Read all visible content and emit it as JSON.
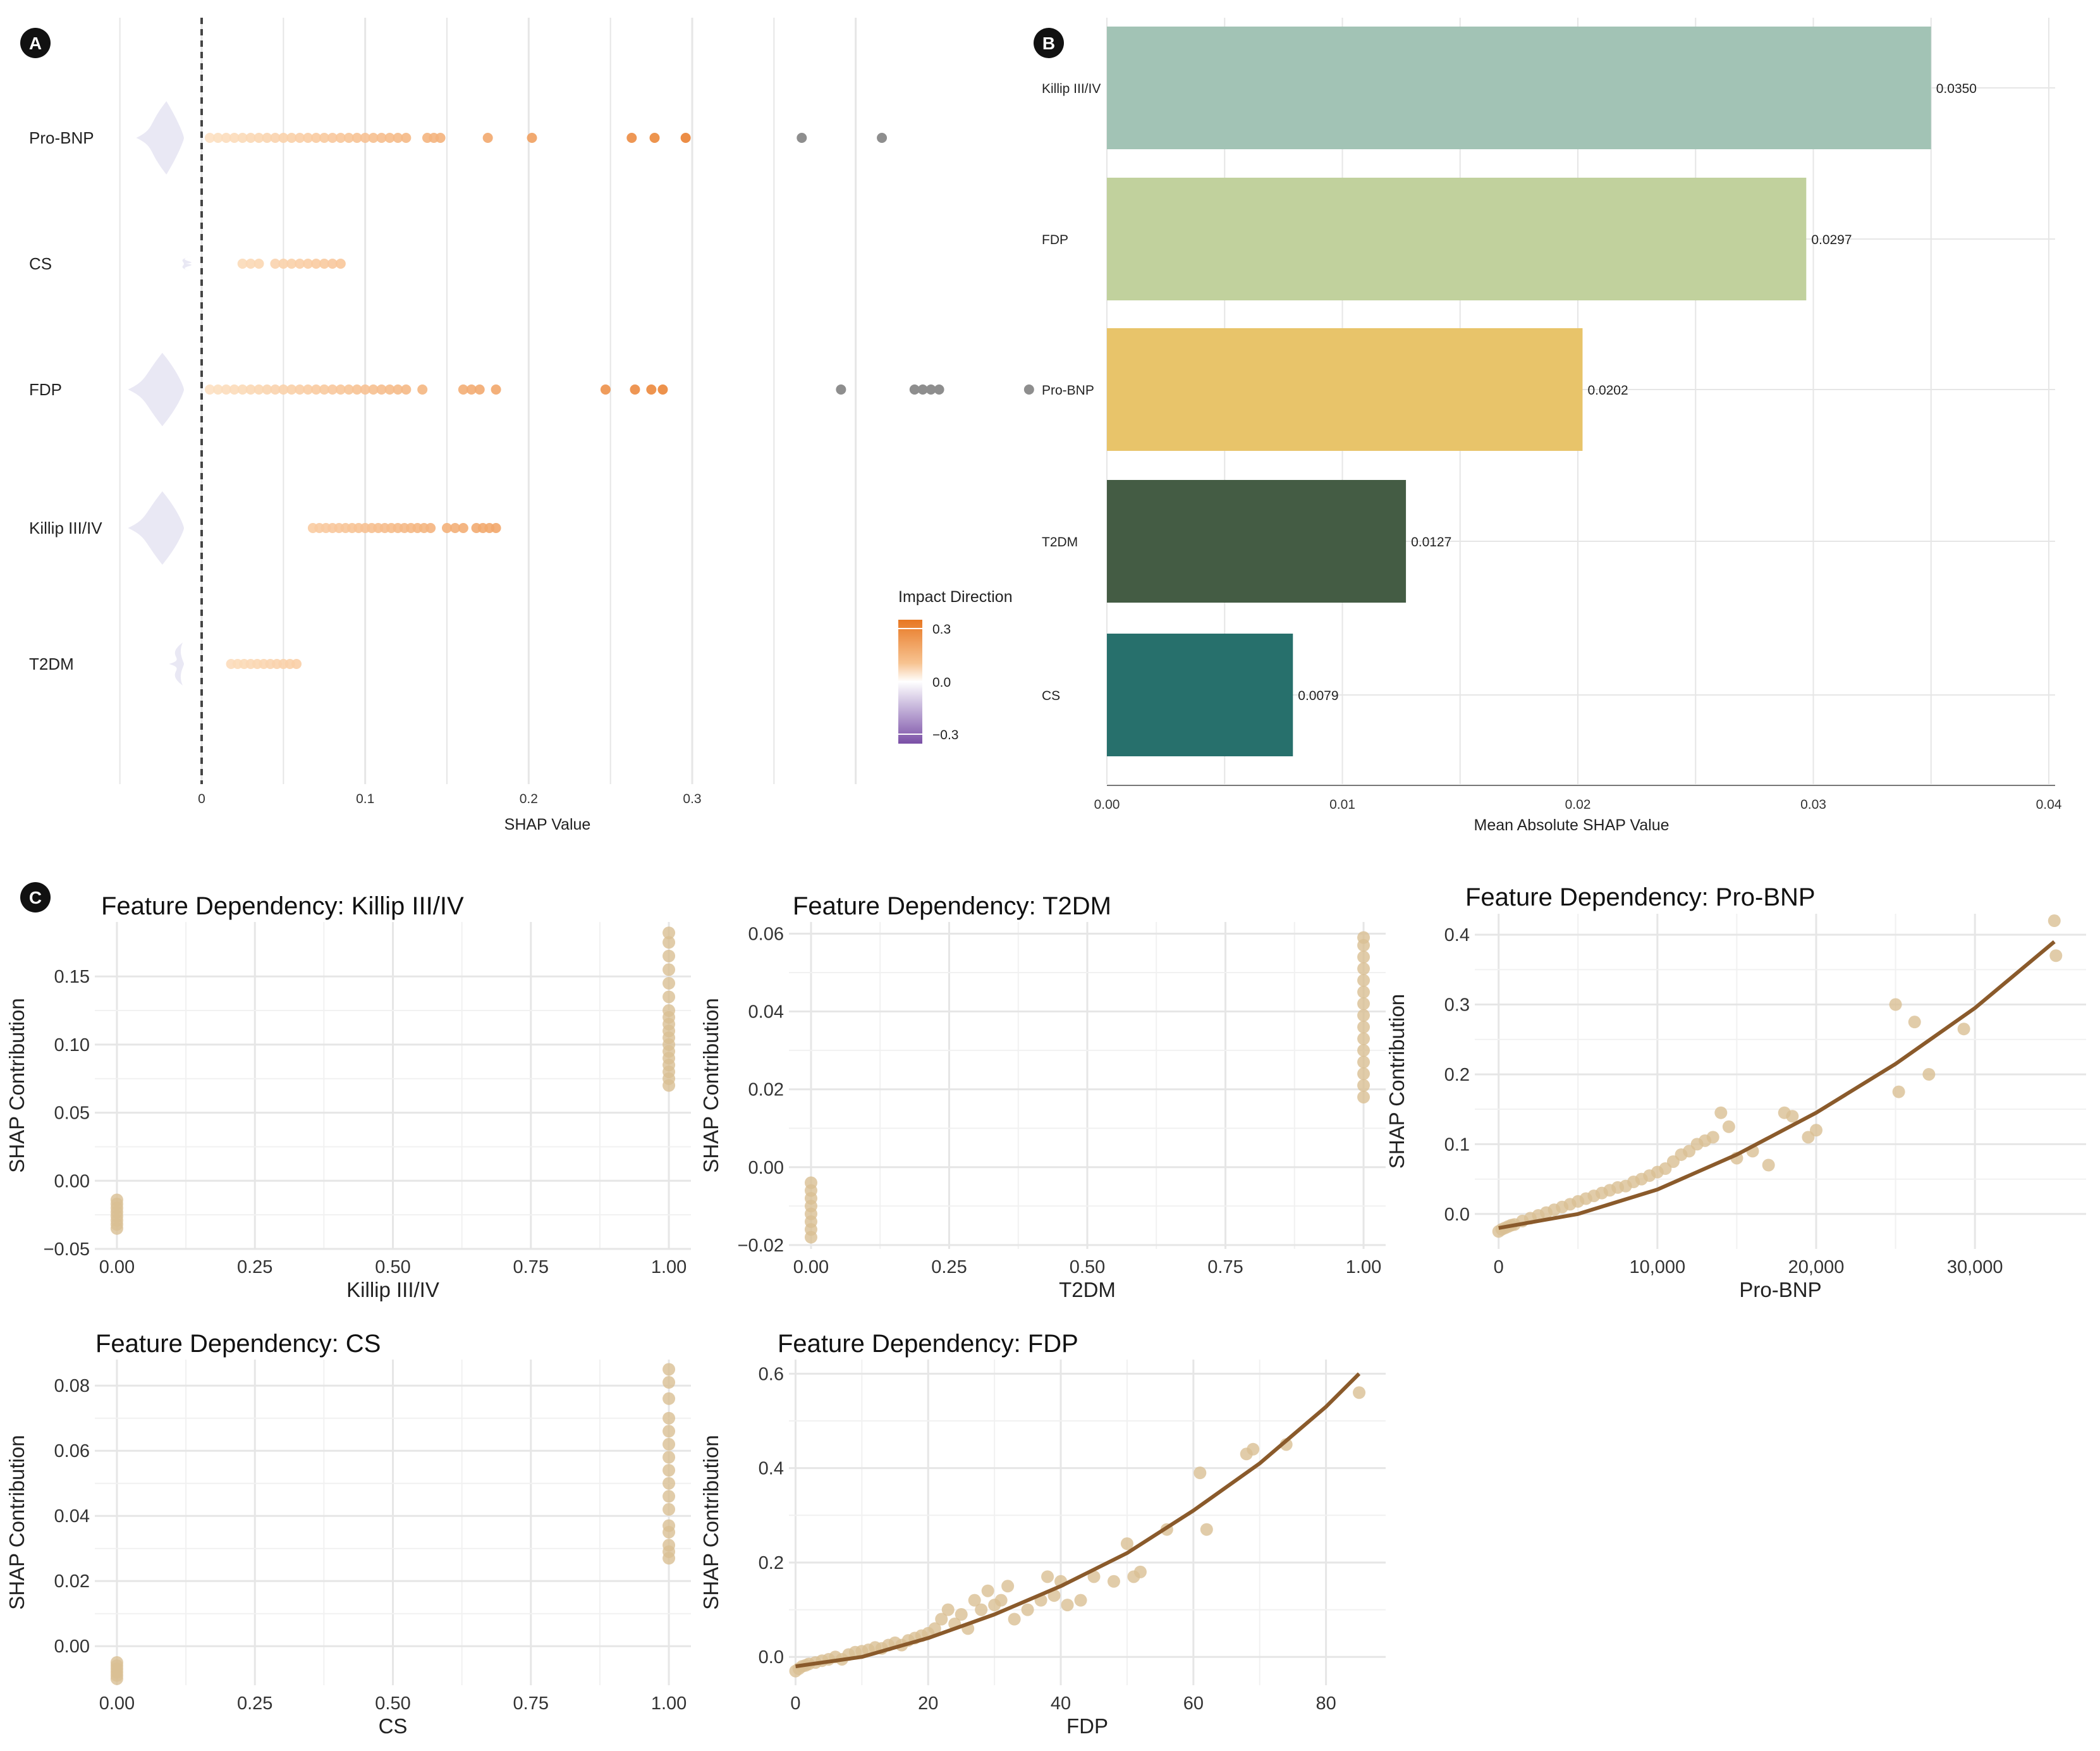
{
  "panel_labels": [
    "A",
    "B",
    "C"
  ],
  "colors": {
    "grid": "#e6e6e6",
    "axis": "#777777",
    "text": "#222222",
    "point_dependency": "#d9bf93",
    "fit_line": "#8a5a2b",
    "bar_killip": "#a2c3b5",
    "bar_fdp": "#c1d19d",
    "bar_probnp": "#e8c46a",
    "bar_t2dm": "#445c44",
    "bar_cs": "#27706c",
    "outlier_gray": "#8e8e8e",
    "violin": "#e7e6f3"
  },
  "chart_data": [
    {
      "panel": "A",
      "type": "scatter",
      "title": "",
      "xlabel": "SHAP Value",
      "ylabel": "",
      "xlim": [
        -0.05,
        0.4
      ],
      "xticks": [
        0.0,
        0.1,
        0.2,
        0.3
      ],
      "categories": [
        "Pro-BNP",
        "CS",
        "FDP",
        "Killip III/IV",
        "T2DM"
      ],
      "zero_line": "dashed",
      "legend": {
        "title": "Impact Direction",
        "ticks": [
          "0.3",
          "0.0",
          "−0.3"
        ],
        "placement": "right"
      },
      "series": [
        {
          "category": "Pro-BNP",
          "values": [
            0.005,
            0.01,
            0.015,
            0.02,
            0.025,
            0.03,
            0.035,
            0.04,
            0.045,
            0.05,
            0.055,
            0.06,
            0.065,
            0.07,
            0.075,
            0.08,
            0.085,
            0.09,
            0.095,
            0.1,
            0.105,
            0.11,
            0.115,
            0.12,
            0.125,
            0.138,
            0.142,
            0.146,
            0.175,
            0.202,
            0.263,
            0.277,
            0.296
          ],
          "outliers": [
            0.367,
            0.416
          ],
          "violin_left": -0.04
        },
        {
          "category": "CS",
          "values": [
            0.025,
            0.03,
            0.035,
            0.045,
            0.05,
            0.055,
            0.06,
            0.065,
            0.07,
            0.075,
            0.08,
            0.085
          ],
          "outliers": [],
          "violin_left": -0.01
        },
        {
          "category": "FDP",
          "values": [
            0.005,
            0.01,
            0.015,
            0.02,
            0.025,
            0.03,
            0.035,
            0.04,
            0.045,
            0.05,
            0.055,
            0.06,
            0.065,
            0.07,
            0.075,
            0.08,
            0.085,
            0.09,
            0.095,
            0.1,
            0.105,
            0.11,
            0.115,
            0.12,
            0.125,
            0.135,
            0.16,
            0.165,
            0.17,
            0.18,
            0.247,
            0.265,
            0.275,
            0.282
          ],
          "outliers": [
            0.391,
            0.436,
            0.441,
            0.446,
            0.451,
            0.506
          ],
          "violin_left": -0.045
        },
        {
          "category": "Killip III/IV",
          "values": [
            0.068,
            0.072,
            0.076,
            0.08,
            0.084,
            0.088,
            0.092,
            0.096,
            0.1,
            0.104,
            0.108,
            0.112,
            0.116,
            0.12,
            0.124,
            0.128,
            0.132,
            0.136,
            0.14,
            0.15,
            0.155,
            0.16,
            0.168,
            0.172,
            0.176,
            0.18
          ],
          "outliers": [],
          "violin_left": -0.045
        },
        {
          "category": "T2DM",
          "values": [
            0.018,
            0.022,
            0.026,
            0.03,
            0.034,
            0.038,
            0.042,
            0.046,
            0.05,
            0.054,
            0.058
          ],
          "outliers": [],
          "violin_left": -0.02
        }
      ]
    },
    {
      "panel": "B",
      "type": "bar",
      "orientation": "horizontal",
      "title": "",
      "xlabel": "Mean Absolute SHAP Value",
      "ylabel": "",
      "xlim": [
        0,
        0.04
      ],
      "xticks": [
        "0.00",
        "0.01",
        "0.02",
        "0.03",
        "0.04"
      ],
      "categories": [
        "Killip III/IV",
        "FDP",
        "Pro-BNP",
        "T2DM",
        "CS"
      ],
      "values": [
        0.035,
        0.0297,
        0.0202,
        0.0127,
        0.0079
      ],
      "value_labels": [
        "0.0350",
        "0.0297",
        "0.0202",
        "0.0127",
        "0.0079"
      ]
    },
    {
      "panel": "C1",
      "type": "scatter",
      "title": "Feature Dependency: Killip III/IV",
      "xlabel": "Killip III/IV",
      "ylabel": "SHAP Contribution",
      "xlim": [
        -0.04,
        1.04
      ],
      "ylim": [
        -0.05,
        0.19
      ],
      "xticks": [
        "0.00",
        "0.25",
        "0.50",
        "0.75",
        "1.00"
      ],
      "yticks": [
        "−0.05",
        "0.00",
        "0.05",
        "0.10",
        "0.15"
      ],
      "x": [
        0,
        0,
        0,
        0,
        0,
        0,
        0,
        0,
        1,
        1,
        1,
        1,
        1,
        1,
        1,
        1,
        1,
        1,
        1,
        1,
        1,
        1,
        1,
        1,
        1,
        1
      ],
      "y": [
        -0.035,
        -0.032,
        -0.029,
        -0.026,
        -0.023,
        -0.02,
        -0.017,
        -0.014,
        0.07,
        0.075,
        0.08,
        0.085,
        0.09,
        0.095,
        0.1,
        0.105,
        0.11,
        0.115,
        0.12,
        0.125,
        0.135,
        0.145,
        0.155,
        0.165,
        0.175,
        0.182
      ]
    },
    {
      "panel": "C2",
      "type": "scatter",
      "title": "Feature Dependency: T2DM",
      "xlabel": "T2DM",
      "ylabel": "SHAP Contribution",
      "xlim": [
        -0.04,
        1.04
      ],
      "ylim": [
        -0.021,
        0.063
      ],
      "xticks": [
        "0.00",
        "0.25",
        "0.50",
        "0.75",
        "1.00"
      ],
      "yticks": [
        "−0.02",
        "0.00",
        "0.02",
        "0.04",
        "0.06"
      ],
      "x": [
        0,
        0,
        0,
        0,
        0,
        0,
        0,
        0,
        1,
        1,
        1,
        1,
        1,
        1,
        1,
        1,
        1,
        1,
        1,
        1,
        1,
        1,
        1
      ],
      "y": [
        -0.018,
        -0.016,
        -0.014,
        -0.012,
        -0.01,
        -0.008,
        -0.006,
        -0.004,
        0.018,
        0.021,
        0.024,
        0.027,
        0.03,
        0.033,
        0.036,
        0.039,
        0.042,
        0.045,
        0.048,
        0.051,
        0.054,
        0.057,
        0.059
      ]
    },
    {
      "panel": "C3",
      "type": "scatter",
      "title": "Feature Dependency: Pro-BNP",
      "xlabel": "Pro-BNP",
      "ylabel": "SHAP Contribution",
      "xlim": [
        -1500,
        37000
      ],
      "ylim": [
        -0.05,
        0.43
      ],
      "xticks": [
        "0",
        "10,000",
        "20,000",
        "30,000"
      ],
      "yticks": [
        "0.0",
        "0.1",
        "0.2",
        "0.3",
        "0.4"
      ],
      "x": [
        0,
        200,
        400,
        600,
        800,
        1000,
        1500,
        2000,
        2500,
        3000,
        3500,
        4000,
        4500,
        5000,
        5500,
        6000,
        6500,
        7000,
        7500,
        8000,
        8500,
        9000,
        9500,
        10000,
        10500,
        11000,
        11500,
        12000,
        12500,
        13000,
        13500,
        14000,
        14500,
        15000,
        16000,
        17000,
        18000,
        18500,
        19500,
        20000,
        25000,
        25200,
        26200,
        27100,
        29300,
        35000,
        35100
      ],
      "y": [
        -0.025,
        -0.022,
        -0.02,
        -0.018,
        -0.016,
        -0.015,
        -0.01,
        -0.006,
        -0.002,
        0.002,
        0.006,
        0.01,
        0.014,
        0.018,
        0.022,
        0.026,
        0.03,
        0.034,
        0.038,
        0.04,
        0.046,
        0.05,
        0.055,
        0.06,
        0.065,
        0.075,
        0.085,
        0.09,
        0.1,
        0.105,
        0.11,
        0.145,
        0.125,
        0.08,
        0.09,
        0.07,
        0.145,
        0.14,
        0.11,
        0.12,
        0.3,
        0.175,
        0.275,
        0.2,
        0.265,
        0.42,
        0.37
      ],
      "fit_line": {
        "x": [
          0,
          5000,
          10000,
          15000,
          20000,
          25000,
          30000,
          35000
        ],
        "y": [
          -0.02,
          0.0,
          0.035,
          0.085,
          0.145,
          0.215,
          0.295,
          0.39
        ]
      }
    },
    {
      "panel": "C4",
      "type": "scatter",
      "title": "Feature Dependency: CS",
      "xlabel": "CS",
      "ylabel": "SHAP Contribution",
      "xlim": [
        -0.04,
        1.04
      ],
      "ylim": [
        -0.012,
        0.088
      ],
      "xticks": [
        "0.00",
        "0.25",
        "0.50",
        "0.75",
        "1.00"
      ],
      "yticks": [
        "0.00",
        "0.02",
        "0.04",
        "0.06",
        "0.08"
      ],
      "x": [
        0,
        0,
        0,
        0,
        0,
        0,
        1,
        1,
        1,
        1,
        1,
        1,
        1,
        1,
        1,
        1,
        1,
        1,
        1,
        1,
        1,
        1
      ],
      "y": [
        -0.01,
        -0.009,
        -0.008,
        -0.007,
        -0.006,
        -0.005,
        0.027,
        0.029,
        0.031,
        0.035,
        0.037,
        0.042,
        0.046,
        0.05,
        0.054,
        0.058,
        0.062,
        0.066,
        0.07,
        0.076,
        0.081,
        0.085
      ]
    },
    {
      "panel": "C5",
      "type": "scatter",
      "title": "Feature Dependency: FDP",
      "xlabel": "FDP",
      "ylabel": "SHAP Contribution",
      "xlim": [
        -1,
        89
      ],
      "ylim": [
        -0.06,
        0.63
      ],
      "xticks": [
        "0",
        "20",
        "40",
        "60",
        "80"
      ],
      "yticks": [
        "0.0",
        "0.2",
        "0.4",
        "0.6"
      ],
      "x": [
        0,
        0.5,
        1,
        1.5,
        2,
        3,
        4,
        5,
        6,
        7,
        8,
        9,
        10,
        11,
        12,
        13,
        14,
        15,
        16,
        17,
        18,
        19,
        20,
        21,
        22,
        23,
        24,
        25,
        26,
        27,
        28,
        29,
        30,
        31,
        32,
        33,
        35,
        37,
        38,
        39,
        40,
        41,
        43,
        45,
        48,
        50,
        51,
        52,
        56,
        61,
        62,
        68,
        69,
        74,
        85
      ],
      "y": [
        -0.03,
        -0.025,
        -0.02,
        -0.018,
        -0.015,
        -0.012,
        -0.008,
        -0.005,
        0.0,
        -0.005,
        0.005,
        0.01,
        0.012,
        0.015,
        0.02,
        0.018,
        0.025,
        0.03,
        0.025,
        0.035,
        0.04,
        0.045,
        0.05,
        0.06,
        0.08,
        0.1,
        0.07,
        0.09,
        0.06,
        0.12,
        0.1,
        0.14,
        0.11,
        0.12,
        0.15,
        0.08,
        0.1,
        0.12,
        0.17,
        0.13,
        0.16,
        0.11,
        0.12,
        0.17,
        0.16,
        0.24,
        0.17,
        0.18,
        0.27,
        0.39,
        0.27,
        0.43,
        0.44,
        0.45,
        0.56
      ],
      "fit_line": {
        "x": [
          0,
          10,
          20,
          30,
          40,
          50,
          60,
          70,
          80,
          85
        ],
        "y": [
          -0.02,
          0.0,
          0.04,
          0.09,
          0.15,
          0.22,
          0.31,
          0.41,
          0.53,
          0.6
        ]
      }
    }
  ]
}
